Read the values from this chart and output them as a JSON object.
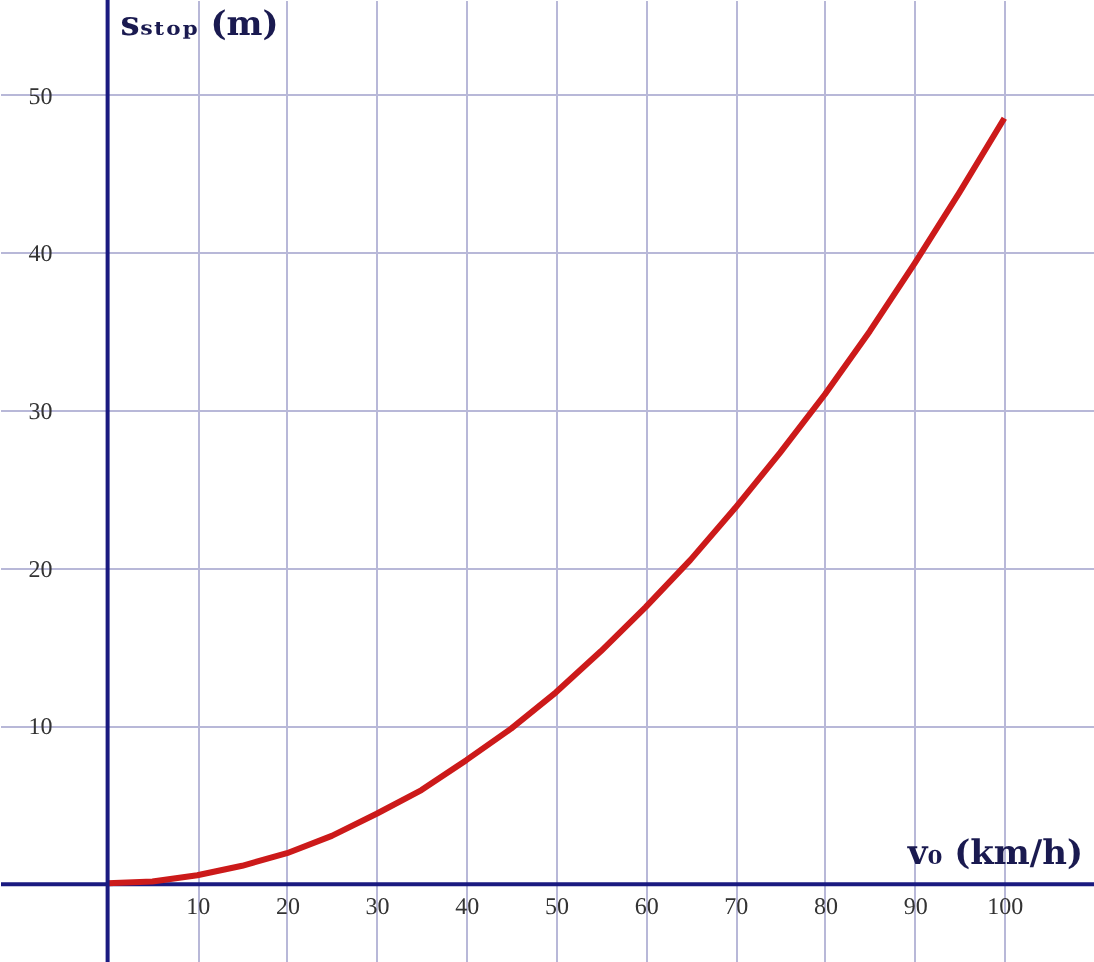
{
  "chart_data": {
    "type": "line",
    "xlabel": "v₀ (km/h)",
    "ylabel": "sₛₜₒₚ (m)",
    "x": [
      0,
      5,
      10,
      15,
      20,
      25,
      30,
      35,
      40,
      45,
      50,
      55,
      60,
      65,
      70,
      75,
      80,
      85,
      90,
      95,
      100
    ],
    "series": [
      {
        "color": "#cc1a1a",
        "values": [
          0,
          0.1,
          0.5,
          1.1,
          1.9,
          3.0,
          4.4,
          5.9,
          7.8,
          9.8,
          12.1,
          14.7,
          17.5,
          20.5,
          23.8,
          27.3,
          31.0,
          35.0,
          39.3,
          43.8,
          48.5
        ]
      }
    ],
    "xlim": [
      -12,
      110
    ],
    "ylim": [
      -5,
      56
    ],
    "xticks": [
      10,
      20,
      30,
      40,
      50,
      60,
      70,
      80,
      90,
      100
    ],
    "yticks": [
      10,
      20,
      30,
      40,
      50
    ],
    "ref_lines": [
      {
        "axis": "x",
        "value": 0,
        "color": "#1a1a80"
      }
    ],
    "grid": true,
    "line_style": "solid",
    "marker": "none"
  }
}
